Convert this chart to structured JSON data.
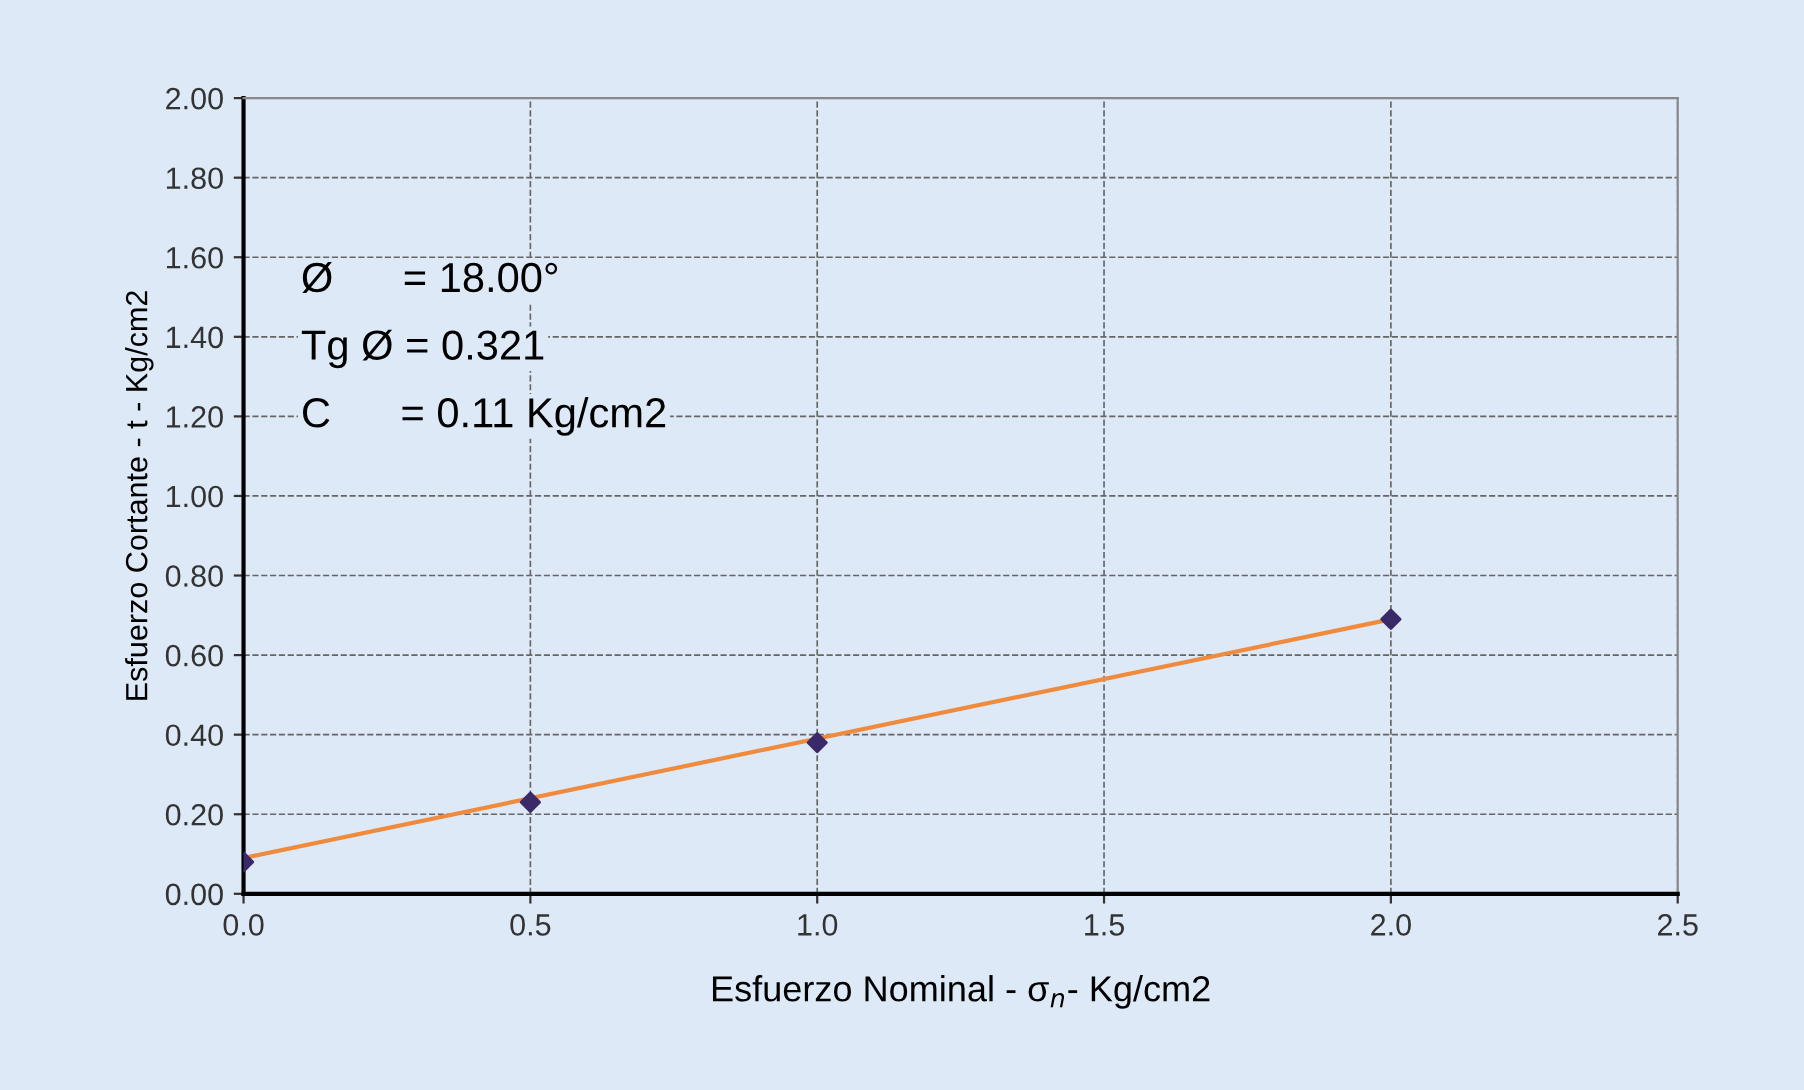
{
  "chart_data": {
    "type": "scatter",
    "xlabel": "Esfuerzo Nominal - σ$_{n}$- Kg/cm2",
    "ylabel": "Esfuerzo Cortante - t - Kg/cm2",
    "x": [
      0,
      0.5,
      1.0,
      2.0
    ],
    "series": [
      {
        "type": "line",
        "color": "#f08a3c",
        "x": [
          0,
          2.0
        ],
        "values": [
          0.09,
          0.69
        ],
        "marker": "none",
        "line_style": "solid"
      },
      {
        "color": "#3a2a6a",
        "values": [
          0.08,
          0.23,
          0.38,
          0.69
        ],
        "marker": "diamond"
      }
    ],
    "annotations": [
      "Ø      = 18.00°",
      "Tg Ø = 0.321",
      "C      = 0.11 Kg/cm2"
    ],
    "xlim": [
      0,
      2.5
    ],
    "xticks": [
      {
        "value": 0,
        "label": "0.0"
      },
      0.5,
      {
        "value": 1,
        "label": "1.0"
      },
      1.5,
      {
        "value": 2,
        "label": "2.0"
      },
      2.5
    ],
    "ylim": [
      0,
      2
    ],
    "yticks": [
      {
        "value": 0,
        "label": "0.00"
      },
      {
        "value": 0.2,
        "label": "0.20"
      },
      {
        "value": 0.4,
        "label": "0.40"
      },
      {
        "value": 0.6,
        "label": "0.60"
      },
      {
        "value": 0.8,
        "label": "0.80"
      },
      {
        "value": 1,
        "label": "1.00"
      },
      {
        "value": 1.2,
        "label": "1.20"
      },
      {
        "value": 1.4,
        "label": "1.40"
      },
      {
        "value": 1.6,
        "label": "1.60"
      },
      {
        "value": 1.8,
        "label": "1.80"
      },
      {
        "value": 2,
        "label": "2.00"
      }
    ],
    "grid": true,
    "legend": false
  }
}
